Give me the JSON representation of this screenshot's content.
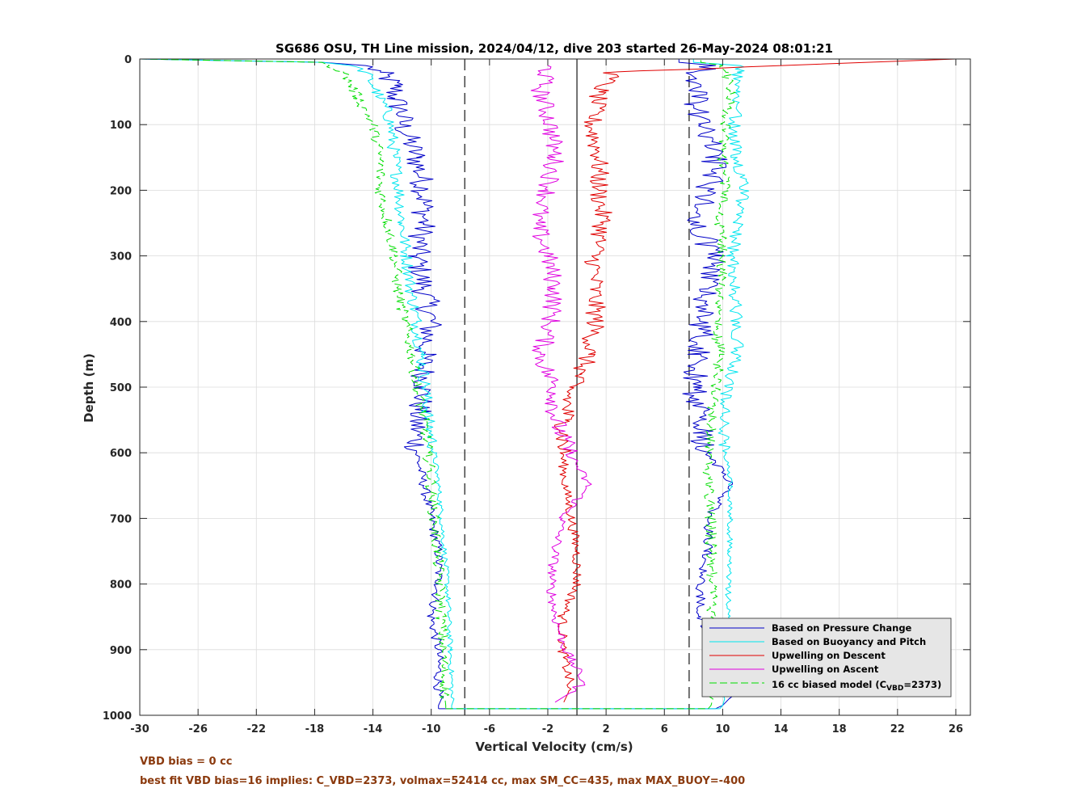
{
  "chart_data": {
    "type": "line",
    "title": "SG686 OSU, TH Line mission, 2024/04/12, dive 203 started 26-May-2024 08:01:21",
    "xlabel": "Vertical Velocity (cm/s)",
    "ylabel": "Depth (m)",
    "xlim": [
      -30,
      27
    ],
    "ylim": [
      1000,
      0
    ],
    "y_reversed": true,
    "grid": true,
    "x_ticks": [
      "-30",
      "-26",
      "-22",
      "-18",
      "-14",
      "-10",
      "-6",
      "-2",
      "2",
      "6",
      "10",
      "14",
      "18",
      "22",
      "26"
    ],
    "y_ticks": [
      "0",
      "100",
      "200",
      "300",
      "400",
      "500",
      "600",
      "700",
      "800",
      "900",
      "1000"
    ],
    "reference_lines": {
      "solid_vertical_x": 0,
      "dashed_vertical_x": [
        -7.7,
        7.7
      ]
    },
    "legend": {
      "placement": "bottom-right",
      "entries": [
        "Based on Pressure Change",
        "Based on Buoyancy and Pitch",
        "Upwelling on Descent",
        "Upwelling on Ascent"
      ],
      "model_entry": {
        "prefix": "16 cc biased model (C",
        "subscript": "VBD",
        "suffix": "=2373)"
      }
    },
    "series": [
      {
        "name": "Based on Pressure Change",
        "color": "#0000c8",
        "style": "solid",
        "descent": {
          "depth": [
            0,
            5,
            10,
            20,
            40,
            60,
            80,
            100,
            150,
            200,
            250,
            300,
            350,
            400,
            450,
            500,
            550,
            600,
            650,
            700,
            750,
            800,
            850,
            900,
            950,
            985,
            990
          ],
          "velocity": [
            -30,
            -17.5,
            -14.5,
            -13.5,
            -12.5,
            -12.5,
            -12,
            -12,
            -11,
            -10.5,
            -10.5,
            -11,
            -10.5,
            -10,
            -10.5,
            -10.5,
            -11,
            -11,
            -10.5,
            -10,
            -9.5,
            -9.5,
            -10,
            -9.5,
            -9.5,
            -9.5,
            -9.5
          ]
        },
        "ascent": {
          "depth": [
            990,
            985,
            950,
            900,
            850,
            800,
            750,
            700,
            650,
            600,
            570,
            550,
            500,
            450,
            400,
            350,
            300,
            250,
            200,
            150,
            100,
            70,
            50,
            20,
            10,
            5,
            0
          ],
          "velocity": [
            9.5,
            10,
            11,
            9.5,
            8.5,
            8.5,
            9,
            9,
            10.5,
            9,
            8.5,
            8.5,
            8,
            8.5,
            8.5,
            9,
            9.5,
            8,
            9,
            9.5,
            8.5,
            8,
            8.5,
            8,
            9.5,
            7,
            7
          ]
        }
      },
      {
        "name": "Based on Buoyancy and Pitch",
        "color": "#00e5ee",
        "style": "solid",
        "descent": {
          "depth": [
            0,
            5,
            10,
            20,
            40,
            60,
            80,
            100,
            150,
            200,
            250,
            300,
            350,
            400,
            450,
            500,
            550,
            600,
            650,
            700,
            750,
            800,
            850,
            900,
            950,
            985,
            990
          ],
          "velocity": [
            -30,
            -17.5,
            -15.5,
            -14.5,
            -14,
            -13.5,
            -13,
            -12.8,
            -12.5,
            -12.2,
            -12,
            -11.7,
            -11.4,
            -11,
            -10.7,
            -10.4,
            -10.2,
            -9.8,
            -9.5,
            -9.3,
            -9.1,
            -8.9,
            -8.8,
            -8.7,
            -8.6,
            -8.6,
            -8.6
          ]
        },
        "ascent": {
          "depth": [
            990,
            985,
            950,
            900,
            850,
            800,
            750,
            700,
            650,
            600,
            550,
            500,
            450,
            400,
            350,
            300,
            250,
            200,
            150,
            100,
            50,
            20,
            10,
            5,
            0
          ],
          "velocity": [
            9.8,
            10,
            10.3,
            10.3,
            10.4,
            10.4,
            10.5,
            10.5,
            10.5,
            10.2,
            10,
            10.3,
            11,
            11,
            10.8,
            10.7,
            11,
            11.5,
            11,
            10.8,
            11.2,
            11,
            11.2,
            8,
            8
          ]
        }
      },
      {
        "name": "Upwelling on Descent",
        "color": "#e00000",
        "style": "solid",
        "depth": [
          0,
          20,
          50,
          100,
          150,
          200,
          250,
          300,
          350,
          400,
          450,
          480,
          500,
          550,
          600,
          650,
          700,
          750,
          800,
          850,
          900,
          950,
          980
        ],
        "velocity": [
          26,
          2.5,
          1.5,
          1,
          1.5,
          1.5,
          1.8,
          1.2,
          1.2,
          1.3,
          0.8,
          0.2,
          -0.5,
          -0.8,
          -1,
          -0.8,
          -0.4,
          0,
          0,
          -1,
          -1,
          -0.5,
          -0.9
        ]
      },
      {
        "name": "Upwelling on Ascent",
        "color": "#e000e0",
        "style": "solid",
        "depth": [
          0,
          10,
          50,
          100,
          150,
          200,
          250,
          300,
          350,
          400,
          450,
          480,
          500,
          550,
          600,
          650,
          700,
          750,
          800,
          850,
          900,
          950,
          980
        ],
        "velocity": [
          -2,
          -2,
          -2.5,
          -1.8,
          -1.5,
          -2,
          -2.8,
          -2,
          -1.5,
          -1.8,
          -2.5,
          -2,
          -1.5,
          -1.5,
          -0.5,
          0.8,
          -1,
          -1.5,
          -1.8,
          -1.5,
          -0.8,
          0.5,
          -1.5
        ]
      },
      {
        "name": "16 cc biased model (C_VBD=2373)",
        "color": "#00dd00",
        "style": "dashed",
        "descent": {
          "depth": [
            0,
            5,
            10,
            20,
            40,
            60,
            80,
            100,
            150,
            200,
            250,
            300,
            350,
            400,
            450,
            500,
            550,
            600,
            650,
            700,
            750,
            800,
            850,
            900,
            950,
            985,
            990
          ],
          "velocity": [
            -30,
            -17.5,
            -17,
            -16,
            -15.5,
            -15,
            -14.5,
            -14,
            -13.5,
            -13.5,
            -13,
            -12.5,
            -12.3,
            -11.8,
            -11.3,
            -11,
            -10.5,
            -10.2,
            -10,
            -9.8,
            -9.6,
            -9.4,
            -9.3,
            -9.2,
            -9.1,
            -9,
            -9
          ]
        },
        "ascent": {
          "depth": [
            990,
            985,
            950,
            900,
            850,
            800,
            750,
            700,
            650,
            600,
            550,
            500,
            450,
            400,
            350,
            300,
            250,
            200,
            150,
            100,
            50,
            20,
            10,
            5,
            0
          ],
          "velocity": [
            9,
            9.2,
            9.2,
            9.1,
            9.2,
            9.3,
            9.2,
            9.2,
            9,
            9,
            9.2,
            9.5,
            9.8,
            9.5,
            9.8,
            10,
            9.8,
            10.2,
            10,
            10.2,
            10.5,
            10.2,
            10,
            8.5,
            8.5
          ]
        }
      }
    ]
  },
  "annotations": {
    "vbd_bias": "VBD bias = 0 cc",
    "best_fit": "best fit VBD bias=16 implies: C_VBD=2373, volmax=52414 cc, max SM_CC=435, max MAX_BUOY=-400"
  }
}
